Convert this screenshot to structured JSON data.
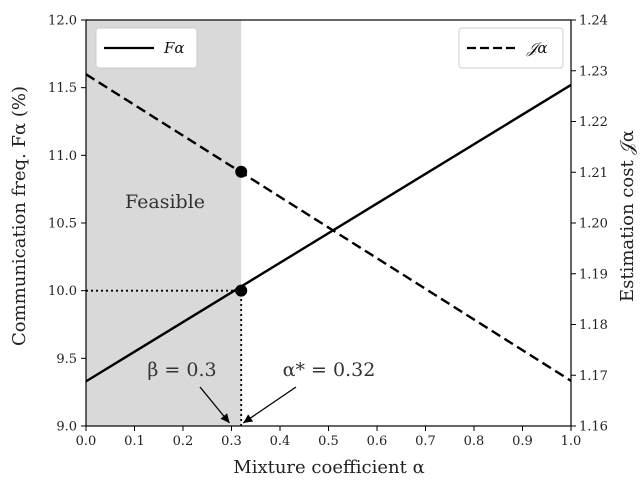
{
  "chart_data": {
    "type": "line",
    "x": [
      0.0,
      1.0
    ],
    "xlabel": "Mixture coefficient α",
    "xlim": [
      0.0,
      1.0
    ],
    "xticks": [
      0.0,
      0.1,
      0.2,
      0.3,
      0.4,
      0.5,
      0.6,
      0.7,
      0.8,
      0.9,
      1.0
    ],
    "ylabel_left": "Communication freq. Fα (%)",
    "ylim_left": [
      9.0,
      12.0
    ],
    "yticks_left": [
      9.0,
      9.5,
      10.0,
      10.5,
      11.0,
      11.5,
      12.0
    ],
    "ylabel_right": "Estimation cost 𝒥α",
    "ylim_right": [
      1.16,
      1.24
    ],
    "yticks_right": [
      1.16,
      1.17,
      1.18,
      1.19,
      1.2,
      1.21,
      1.22,
      1.23,
      1.24
    ],
    "series": [
      {
        "name": "Fα",
        "axis": "left",
        "style": "solid",
        "x": [
          0.0,
          1.0
        ],
        "y": [
          9.33,
          11.52
        ]
      },
      {
        "name": "𝒥α",
        "axis": "right",
        "style": "dashed",
        "x": [
          0.0,
          1.0
        ],
        "y": [
          1.2293,
          1.1689
        ]
      }
    ],
    "markers": [
      {
        "axis": "left",
        "x": 0.32,
        "y": 10.0
      },
      {
        "axis": "right",
        "x": 0.32,
        "y": 1.2101
      }
    ],
    "reference_lines": [
      {
        "axis": "left",
        "x_from": 0.0,
        "x_to": 0.32,
        "y": 10.0,
        "style": "dotted"
      },
      {
        "axis": "left",
        "x": 0.32,
        "y_from": 9.0,
        "y_to": 10.0,
        "style": "dotted"
      }
    ],
    "shaded_region": {
      "x_from": 0.0,
      "x_to": 0.32,
      "label": "Feasible",
      "color": "#d9d9d9"
    },
    "annotations": [
      {
        "text": "β = 0.3",
        "points_to_x": 0.3
      },
      {
        "text": "α* = 0.32",
        "points_to_x": 0.32
      }
    ],
    "legend": [
      {
        "label": "Fα",
        "style": "solid",
        "placement": "top-left"
      },
      {
        "label": "𝒥α",
        "style": "dashed",
        "placement": "top-right"
      }
    ],
    "colors": {
      "line": "#000000",
      "shade": "#d9d9d9"
    },
    "grid": false
  }
}
